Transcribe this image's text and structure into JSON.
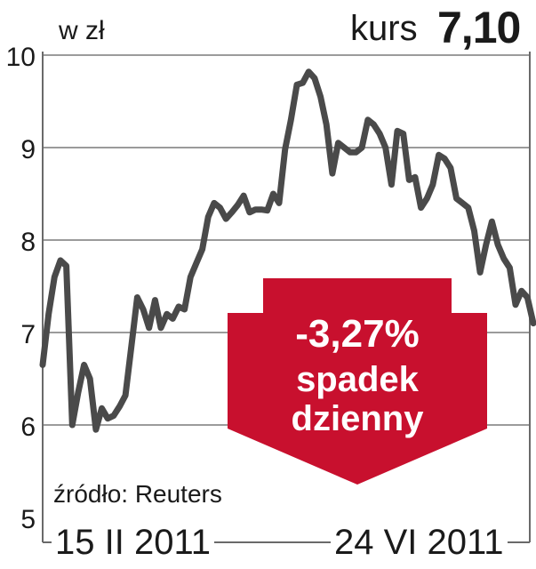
{
  "header": {
    "unit_label": "w zł",
    "kurs_label": "kurs",
    "kurs_value": "7,10"
  },
  "badge": {
    "line1": "-3,27%",
    "line2": "spadek",
    "line3": "dzienny",
    "color": "#c8102e"
  },
  "source": "źródło: Reuters",
  "chart_data": {
    "type": "line",
    "title": "",
    "xlabel": "",
    "ylabel": "w zł",
    "ylim": [
      5,
      10
    ],
    "y_ticks": [
      "10",
      "9",
      "8",
      "7",
      "6",
      "5"
    ],
    "x_labels": [
      "15 II 2011",
      "24 VI 2011"
    ],
    "grid": true,
    "line_color": "#4a4a4a",
    "series": [
      {
        "values": [
          6.65,
          7.2,
          7.6,
          7.78,
          7.72,
          6.0,
          6.35,
          6.65,
          6.5,
          5.95,
          6.18,
          6.07,
          6.1,
          6.2,
          6.32,
          6.85,
          7.38,
          7.25,
          7.05,
          7.35,
          7.05,
          7.2,
          7.15,
          7.28,
          7.25,
          7.6,
          7.75,
          7.9,
          8.25,
          8.4,
          8.35,
          8.23,
          8.3,
          8.38,
          8.48,
          8.3,
          8.33,
          8.33,
          8.32,
          8.5,
          8.4,
          8.98,
          9.3,
          9.68,
          9.7,
          9.82,
          9.75,
          9.55,
          9.25,
          8.72,
          9.05,
          9.0,
          8.95,
          8.95,
          9.0,
          9.3,
          9.25,
          9.15,
          9.0,
          8.6,
          9.18,
          9.15,
          8.65,
          8.68,
          8.35,
          8.45,
          8.6,
          8.92,
          8.88,
          8.78,
          8.45,
          8.4,
          8.35,
          8.1,
          7.65,
          7.95,
          8.2,
          7.95,
          7.8,
          7.7,
          7.3,
          7.45,
          7.38,
          7.1
        ]
      }
    ]
  }
}
